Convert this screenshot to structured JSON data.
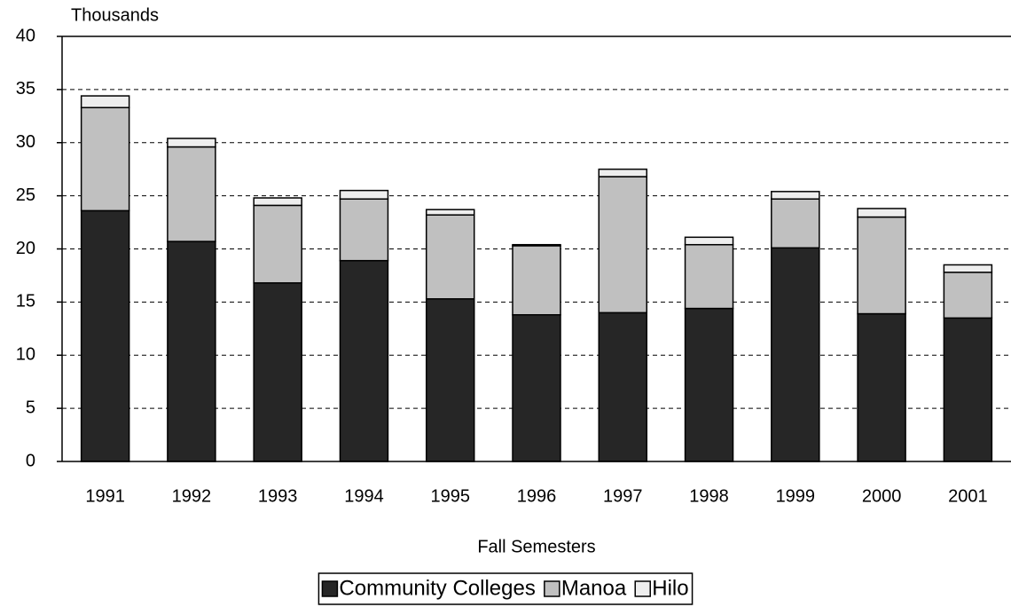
{
  "chart_data": {
    "type": "stacked_bar",
    "y_label": "Thousands",
    "x_label": "Fall Semesters",
    "categories": [
      "1991",
      "1992",
      "1993",
      "1994",
      "1995",
      "1996",
      "1997",
      "1998",
      "1999",
      "2000",
      "2001"
    ],
    "series": [
      {
        "name": "Community Colleges",
        "color": "#262626",
        "values": [
          23.6,
          20.7,
          16.8,
          18.9,
          15.3,
          13.8,
          14.0,
          14.4,
          20.1,
          13.9,
          13.5
        ]
      },
      {
        "name": "Manoa",
        "color": "#c0c0c0",
        "values": [
          9.7,
          8.9,
          7.3,
          5.8,
          7.9,
          6.5,
          12.8,
          6.0,
          4.6,
          9.1,
          4.3
        ]
      },
      {
        "name": "Hilo",
        "color": "#eeeeee",
        "values": [
          1.1,
          0.8,
          0.7,
          0.8,
          0.5,
          0.1,
          0.7,
          0.7,
          0.7,
          0.8,
          0.7
        ]
      }
    ],
    "ylim": [
      0,
      40
    ],
    "yticks": [
      0,
      5,
      10,
      15,
      20,
      25,
      30,
      35,
      40
    ],
    "grid": true,
    "legend": "bottom"
  }
}
